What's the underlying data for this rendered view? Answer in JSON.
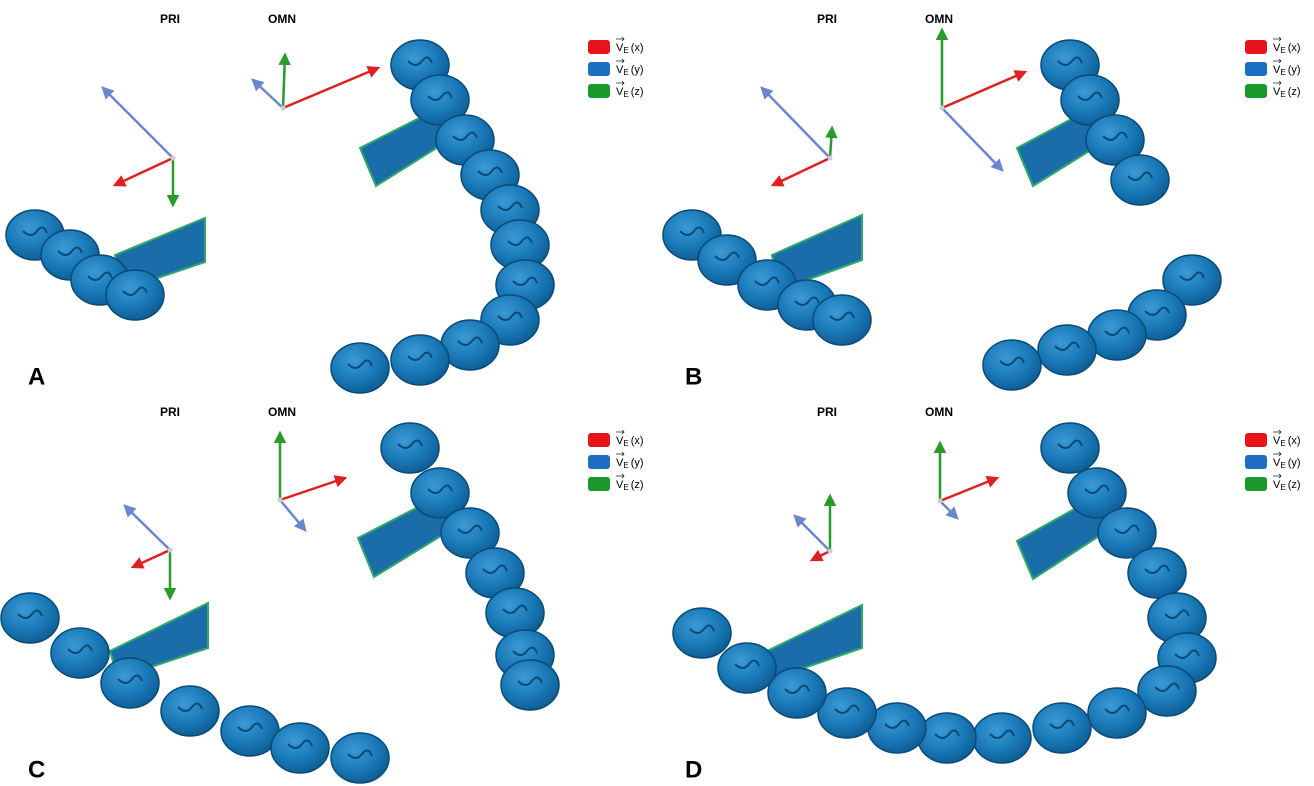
{
  "panels": [
    "A",
    "B",
    "C",
    "D"
  ],
  "frame_labels": {
    "pri": "PRI",
    "omn": "OMN"
  },
  "legend": [
    {
      "vector": "V",
      "subscript": "E",
      "component": "(x)",
      "color": "#e8141b"
    },
    {
      "vector": "V",
      "subscript": "E",
      "component": "(y)",
      "color": "#1c6fc0"
    },
    {
      "vector": "V",
      "subscript": "E",
      "component": "(z)",
      "color": "#1a9a2a"
    }
  ]
}
